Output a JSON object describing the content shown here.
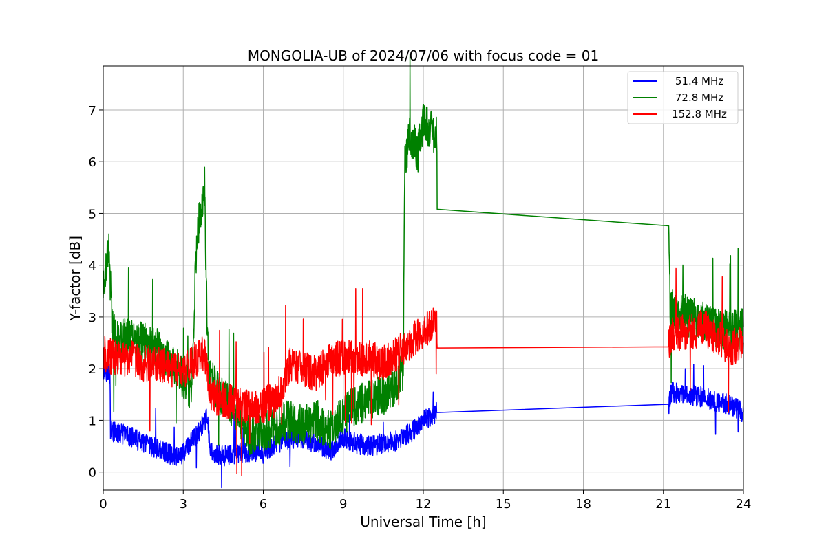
{
  "chart_data": {
    "type": "line",
    "title": "MONGOLIA-UB of 2024/07/06 with focus code = 01",
    "xlabel": "Universal Time [h]",
    "ylabel": "Y-factor [dB]",
    "xlim": [
      0,
      24
    ],
    "ylim": [
      -0.35,
      7.85
    ],
    "xticks": [
      0,
      3,
      6,
      9,
      12,
      15,
      18,
      21,
      24
    ],
    "yticks": [
      0,
      1,
      2,
      3,
      4,
      5,
      6,
      7
    ],
    "grid": true,
    "legend_position": "top-right",
    "series": [
      {
        "name": "51.4 MHz",
        "color": "#0000ff",
        "noise": 0.2,
        "x": [
          0.0,
          0.25,
          0.27,
          0.5,
          1.0,
          1.5,
          2.0,
          2.5,
          2.9,
          3.1,
          3.5,
          3.9,
          4.0,
          4.5,
          5.0,
          5.5,
          6.0,
          6.5,
          7.0,
          7.5,
          8.0,
          8.5,
          9.0,
          9.5,
          10.0,
          10.5,
          11.0,
          11.5,
          12.0,
          12.5,
          21.2,
          21.3,
          22.0,
          22.5,
          23.0,
          23.5,
          24.0
        ],
        "y": [
          2.0,
          1.9,
          0.8,
          0.75,
          0.7,
          0.55,
          0.45,
          0.35,
          0.3,
          0.45,
          0.7,
          1.05,
          0.4,
          0.3,
          0.35,
          0.4,
          0.35,
          0.55,
          0.65,
          0.65,
          0.55,
          0.4,
          0.65,
          0.55,
          0.5,
          0.55,
          0.6,
          0.75,
          1.0,
          1.15,
          1.3,
          1.55,
          1.5,
          1.45,
          1.35,
          1.3,
          1.15
        ]
      },
      {
        "name": "72.8 MHz",
        "color": "#008000",
        "noise": 0.4,
        "x": [
          0.0,
          0.1,
          0.2,
          0.35,
          0.5,
          1.0,
          1.5,
          2.0,
          2.5,
          3.0,
          3.3,
          3.5,
          3.7,
          3.8,
          3.9,
          4.0,
          4.5,
          5.0,
          5.3,
          5.5,
          6.0,
          6.5,
          7.0,
          7.5,
          8.0,
          8.5,
          9.0,
          9.5,
          10.0,
          10.5,
          11.0,
          11.25,
          11.3,
          11.5,
          11.8,
          12.0,
          12.3,
          12.5,
          12.52,
          21.2,
          21.25,
          21.5,
          22.0,
          22.5,
          23.0,
          23.5,
          24.0
        ],
        "y": [
          3.5,
          4.0,
          4.3,
          2.8,
          2.6,
          2.6,
          2.5,
          2.4,
          2.2,
          1.8,
          1.6,
          4.5,
          5.2,
          5.5,
          2.6,
          1.8,
          1.4,
          1.2,
          0.9,
          0.7,
          0.8,
          0.9,
          1.0,
          0.9,
          1.0,
          0.8,
          1.1,
          1.3,
          1.4,
          1.5,
          1.7,
          2.0,
          6.0,
          6.5,
          6.2,
          6.8,
          6.6,
          6.5,
          5.08,
          4.98,
          3.2,
          3.1,
          3.0,
          2.9,
          2.8,
          2.7,
          2.8
        ]
      },
      {
        "name": "152.8 MHz",
        "color": "#ff0000",
        "noise": 0.35,
        "x": [
          0.0,
          0.5,
          1.0,
          1.5,
          2.0,
          2.5,
          3.0,
          3.5,
          3.8,
          4.0,
          4.5,
          5.0,
          5.5,
          6.0,
          6.5,
          7.0,
          7.5,
          8.0,
          8.5,
          9.0,
          9.5,
          10.0,
          10.5,
          11.0,
          11.5,
          12.0,
          12.5,
          12.52,
          21.2,
          21.25,
          21.5,
          22.0,
          22.5,
          23.0,
          23.5,
          24.0
        ],
        "y": [
          2.3,
          2.2,
          2.2,
          2.1,
          2.1,
          2.0,
          1.95,
          2.2,
          2.3,
          1.5,
          1.4,
          1.3,
          1.25,
          1.3,
          1.4,
          2.1,
          2.0,
          1.9,
          2.2,
          2.2,
          2.2,
          2.2,
          2.1,
          2.3,
          2.5,
          2.7,
          2.9,
          2.4,
          2.4,
          2.6,
          2.7,
          2.7,
          2.8,
          2.6,
          2.4,
          2.5
        ]
      }
    ]
  }
}
